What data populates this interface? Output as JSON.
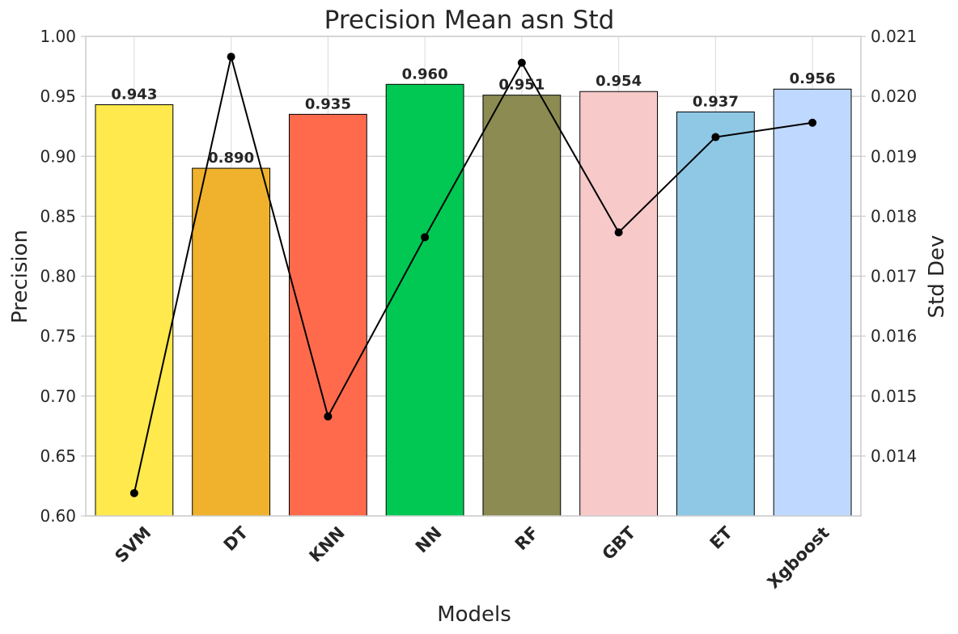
{
  "chart_data": {
    "type": "bar",
    "title": "Precision Mean asn Std",
    "xlabel": "Models",
    "ylabel": "Precision",
    "y2label": "Std Dev",
    "categories": [
      "SVM",
      "DT",
      "KNN",
      "NN",
      "RF",
      "GBT",
      "ET",
      "Xgboost"
    ],
    "series": [
      {
        "kind": "bar",
        "axis": "left",
        "values": [
          0.943,
          0.89,
          0.935,
          0.96,
          0.951,
          0.954,
          0.937,
          0.956
        ],
        "value_labels": [
          "0.943",
          "0.890",
          "0.935",
          "0.960",
          "0.951",
          "0.954",
          "0.937",
          "0.956"
        ],
        "colors": [
          "#FFE94D",
          "#F0B22C",
          "#FF6A4D",
          "#00C853",
          "#8B8B52",
          "#F7C9C9",
          "#8FC8E5",
          "#BFD8FF"
        ]
      },
      {
        "kind": "line",
        "axis": "right",
        "values": [
          0.01338,
          0.02066,
          0.01466,
          0.01765,
          0.02056,
          0.01773,
          0.01932,
          0.01956
        ],
        "color": "#000000"
      }
    ],
    "ylim": [
      0.6,
      1.0
    ],
    "yticks": [
      "0.60",
      "0.65",
      "0.70",
      "0.75",
      "0.80",
      "0.85",
      "0.90",
      "0.95",
      "1.00"
    ],
    "y2lim": [
      0.013,
      0.021
    ],
    "y2ticks": [
      "0.014",
      "0.015",
      "0.016",
      "0.017",
      "0.018",
      "0.019",
      "0.020",
      "0.021"
    ],
    "grid": true,
    "xtick_rotation": -45
  }
}
